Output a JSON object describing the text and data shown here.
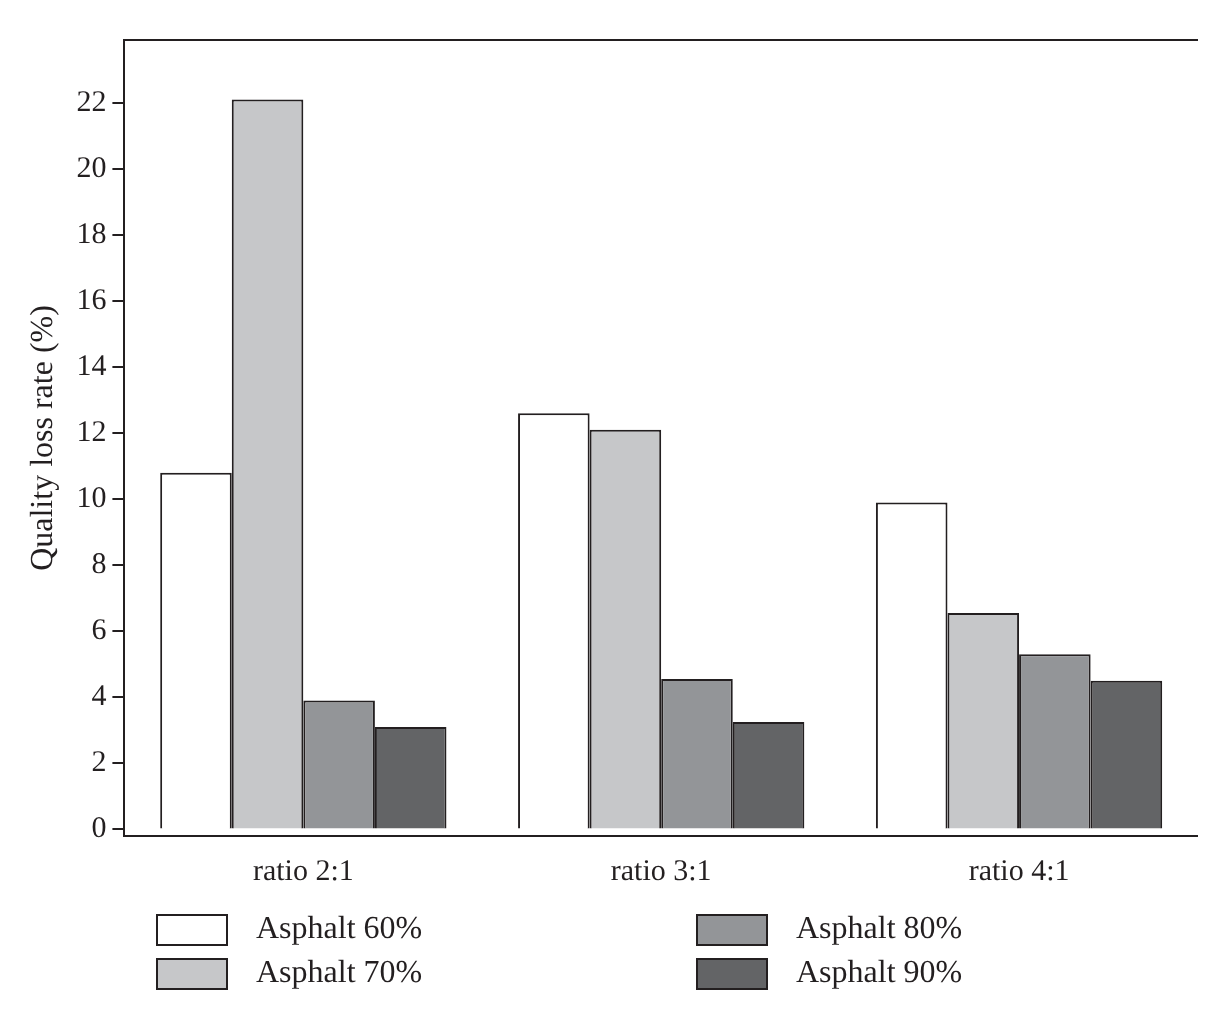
{
  "chart_data": {
    "type": "bar",
    "ylabel": "Quality loss rate (%)",
    "categories": [
      "ratio 2:1",
      "ratio 3:1",
      "ratio 4:1"
    ],
    "series": [
      {
        "name": "Asphalt 60%",
        "color": "#ffffff",
        "values": [
          10.8,
          12.6,
          9.9
        ]
      },
      {
        "name": "Asphalt 70%",
        "color": "#c6c7c9",
        "values": [
          22.1,
          12.1,
          6.55
        ]
      },
      {
        "name": "Asphalt 80%",
        "color": "#939598",
        "values": [
          3.9,
          4.55,
          5.3
        ]
      },
      {
        "name": "Asphalt 90%",
        "color": "#636466",
        "values": [
          3.1,
          3.25,
          4.5
        ]
      }
    ],
    "ylim": [
      -0.2,
      23.9
    ],
    "yticks": [
      0,
      2,
      4,
      6,
      8,
      10,
      12,
      14,
      16,
      18,
      20,
      22
    ],
    "grid": false,
    "legend": "bottom"
  }
}
